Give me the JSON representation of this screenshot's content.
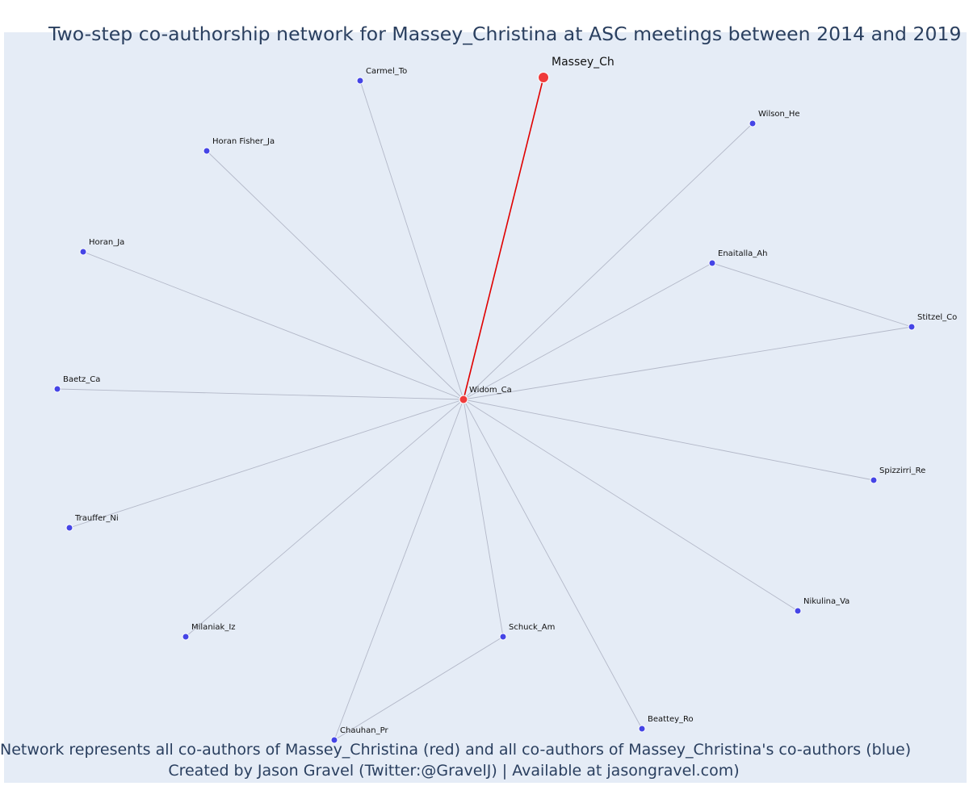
{
  "title": "Two-step co-authorship network for Massey_Christina at ASC meetings between 2014 and 2019",
  "captions": {
    "line1": "Network represents all co-authors of Massey_Christina (red) and all co-authors of Massey_Christina's co-authors (blue)",
    "line2": "Created by Jason Gravel (Twitter:@GravelJ) | Available at jasongravel.com)"
  },
  "colors": {
    "background": "#e5ecf6",
    "main_node": "#ef3b3b",
    "coauthor_node": "#ef3b3b",
    "second_step_node": "#4545e6",
    "main_edge": "#e00000",
    "edge": "#b3b8c8"
  },
  "nodes": [
    {
      "id": "Massey_Ch",
      "label": "Massey_Ch",
      "role": "main"
    },
    {
      "id": "Widom_Ca",
      "label": "Widom_Ca",
      "role": "coauthor"
    },
    {
      "id": "Carmel_To",
      "label": "Carmel_To",
      "role": "second"
    },
    {
      "id": "Wilson_He",
      "label": "Wilson_He",
      "role": "second"
    },
    {
      "id": "Horan Fisher_Ja",
      "label": "Horan Fisher_Ja",
      "role": "second"
    },
    {
      "id": "Horan_Ja",
      "label": "Horan_Ja",
      "role": "second"
    },
    {
      "id": "Enaitalla_Ah",
      "label": "Enaitalla_Ah",
      "role": "second"
    },
    {
      "id": "Stitzel_Co",
      "label": "Stitzel_Co",
      "role": "second"
    },
    {
      "id": "Baetz_Ca",
      "label": "Baetz_Ca",
      "role": "second"
    },
    {
      "id": "Spizzirri_Re",
      "label": "Spizzirri_Re",
      "role": "second"
    },
    {
      "id": "Trauffer_Ni",
      "label": "Trauffer_Ni",
      "role": "second"
    },
    {
      "id": "Nikulina_Va",
      "label": "Nikulina_Va",
      "role": "second"
    },
    {
      "id": "Milaniak_Iz",
      "label": "Milaniak_Iz",
      "role": "second"
    },
    {
      "id": "Schuck_Am",
      "label": "Schuck_Am",
      "role": "second"
    },
    {
      "id": "Beattey_Ro",
      "label": "Beattey_Ro",
      "role": "second"
    },
    {
      "id": "Chauhan_Pr",
      "label": "Chauhan_Pr",
      "role": "second"
    }
  ],
  "edges": [
    {
      "source": "Widom_Ca",
      "target": "Massey_Ch",
      "type": "main"
    },
    {
      "source": "Widom_Ca",
      "target": "Carmel_To"
    },
    {
      "source": "Widom_Ca",
      "target": "Wilson_He"
    },
    {
      "source": "Widom_Ca",
      "target": "Horan Fisher_Ja"
    },
    {
      "source": "Widom_Ca",
      "target": "Horan_Ja"
    },
    {
      "source": "Widom_Ca",
      "target": "Enaitalla_Ah"
    },
    {
      "source": "Widom_Ca",
      "target": "Stitzel_Co"
    },
    {
      "source": "Enaitalla_Ah",
      "target": "Stitzel_Co"
    },
    {
      "source": "Widom_Ca",
      "target": "Baetz_Ca"
    },
    {
      "source": "Widom_Ca",
      "target": "Spizzirri_Re"
    },
    {
      "source": "Widom_Ca",
      "target": "Trauffer_Ni"
    },
    {
      "source": "Widom_Ca",
      "target": "Nikulina_Va"
    },
    {
      "source": "Widom_Ca",
      "target": "Milaniak_Iz"
    },
    {
      "source": "Widom_Ca",
      "target": "Schuck_Am"
    },
    {
      "source": "Widom_Ca",
      "target": "Beattey_Ro"
    },
    {
      "source": "Widom_Ca",
      "target": "Chauhan_Pr"
    },
    {
      "source": "Schuck_Am",
      "target": "Chauhan_Pr"
    }
  ]
}
